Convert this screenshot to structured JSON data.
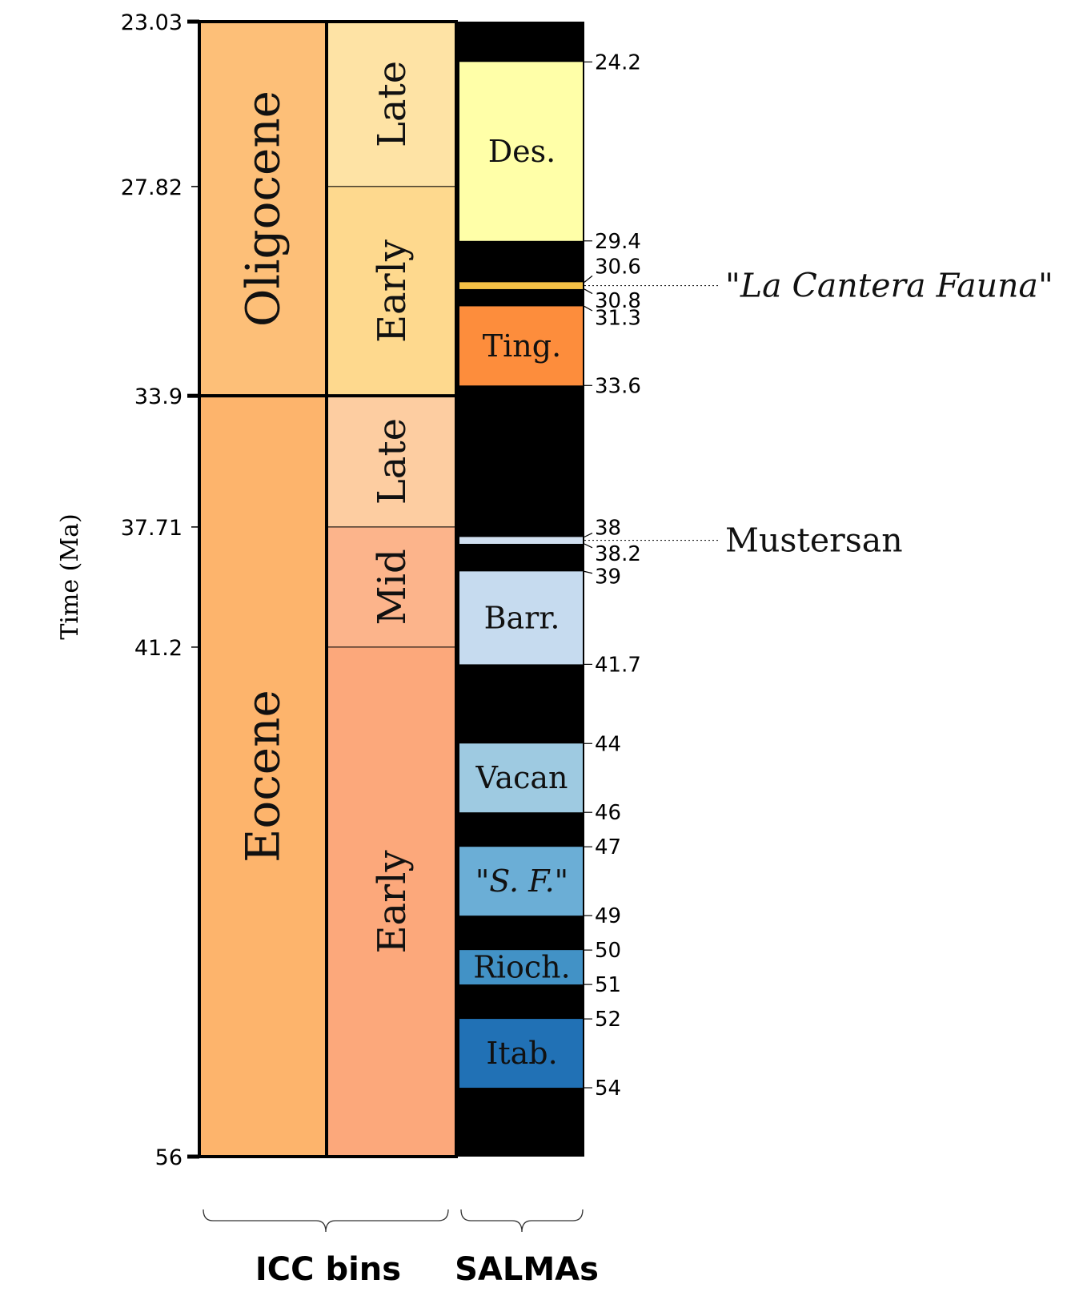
{
  "axis": {
    "title": "Time (Ma)",
    "ticks": [
      {
        "value": 23.03,
        "label": "23.03",
        "major": true
      },
      {
        "value": 27.82,
        "label": "27.82",
        "major": false
      },
      {
        "value": 33.9,
        "label": "33.9",
        "major": true
      },
      {
        "value": 37.71,
        "label": "37.71",
        "major": false
      },
      {
        "value": 41.2,
        "label": "41.2",
        "major": false
      },
      {
        "value": 56,
        "label": "56",
        "major": true
      }
    ]
  },
  "epochs": [
    {
      "name": "Oligocene",
      "start": 23.03,
      "end": 33.9,
      "color": "#fdbf78"
    },
    {
      "name": "Eocene",
      "start": 33.9,
      "end": 56,
      "color": "#fdb46c"
    }
  ],
  "icc_bins": [
    {
      "name": "Late",
      "start": 23.03,
      "end": 27.82,
      "color": "#fee3a5"
    },
    {
      "name": "Early",
      "start": 27.82,
      "end": 33.9,
      "color": "#fed98e"
    },
    {
      "name": "Late",
      "start": 33.9,
      "end": 37.71,
      "color": "#fdcda1"
    },
    {
      "name": "Mid",
      "start": 37.71,
      "end": 41.2,
      "color": "#fcb48b"
    },
    {
      "name": "Early",
      "start": 41.2,
      "end": 56,
      "color": "#fca87b"
    }
  ],
  "salmas": [
    {
      "name": "Des.",
      "start": 24.2,
      "end": 29.4,
      "color": "#ffffa8",
      "italic": false
    },
    {
      "name": "",
      "start": 30.6,
      "end": 30.8,
      "color": "#f4c046",
      "italic": false
    },
    {
      "name": "Ting.",
      "start": 31.3,
      "end": 33.6,
      "color": "#fd8d3c",
      "italic": false
    },
    {
      "name": "",
      "start": 38,
      "end": 38.2,
      "color": "#d0dff0",
      "italic": false
    },
    {
      "name": "Barr.",
      "start": 39,
      "end": 41.7,
      "color": "#c6dbef",
      "italic": false
    },
    {
      "name": "Vacan",
      "start": 44,
      "end": 46,
      "color": "#9ecae1",
      "italic": false
    },
    {
      "name": "\"S. F.\"",
      "start": 47,
      "end": 49,
      "color": "#6baed6",
      "italic": true
    },
    {
      "name": "Rioch.",
      "start": 50,
      "end": 51,
      "color": "#4292c6",
      "italic": false
    },
    {
      "name": "Itab.",
      "start": 52,
      "end": 54,
      "color": "#2171b5",
      "italic": false
    }
  ],
  "salma_ages": [
    {
      "label": "24.2",
      "value": 24.2
    },
    {
      "label": "29.4",
      "value": 29.4
    },
    {
      "label": "30.6",
      "value": 30.6
    },
    {
      "label": "30.8",
      "value": 30.8
    },
    {
      "label": "31.3",
      "value": 31.3
    },
    {
      "label": "33.6",
      "value": 33.6
    },
    {
      "label": "38",
      "value": 38
    },
    {
      "label": "38.2",
      "value": 38.2
    },
    {
      "label": "39",
      "value": 39
    },
    {
      "label": "41.7",
      "value": 41.7
    },
    {
      "label": "44",
      "value": 44
    },
    {
      "label": "46",
      "value": 46
    },
    {
      "label": "47",
      "value": 47
    },
    {
      "label": "49",
      "value": 49
    },
    {
      "label": "50",
      "value": 50
    },
    {
      "label": "51",
      "value": 51
    },
    {
      "label": "52",
      "value": 52
    },
    {
      "label": "54",
      "value": 54
    }
  ],
  "callouts": [
    {
      "label": "\"La Cantera Fauna\"",
      "value": 30.7,
      "italic": true
    },
    {
      "label": "Mustersan",
      "value": 38.1,
      "italic": false
    }
  ],
  "groups": {
    "icc": "ICC bins",
    "salma": "SALMAs"
  },
  "colors": {
    "salma_background": "#000000",
    "border": "#000000"
  }
}
